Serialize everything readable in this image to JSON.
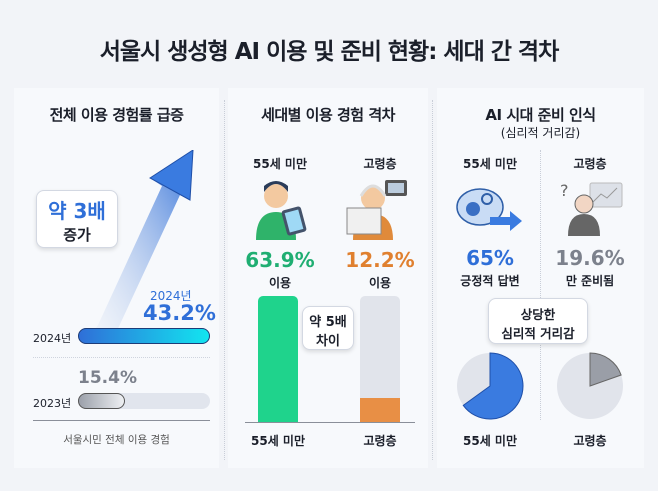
{
  "title": "서울시 생성형 AI 이용 및 준비 현황: 세대 간 격차",
  "colors": {
    "blue": "#2f6fd8",
    "green": "#1fc98a",
    "orange": "#e58a3a",
    "gray": "#8b909b"
  },
  "chart_data": [
    {
      "type": "bar",
      "title": "전체 이용 경험률 급증",
      "orientation": "horizontal",
      "categories": [
        "2024년",
        "2023년"
      ],
      "values": [
        43.2,
        15.4
      ],
      "unit": "%",
      "xlabel": "서울시민 전체 이용 경험",
      "annotation": {
        "line1": "약 3배",
        "line2": "증가"
      },
      "value_labels": {
        "2024": {
          "year": "2024년",
          "value": "43.2%"
        },
        "2023": {
          "value": "15.4%"
        }
      }
    },
    {
      "type": "bar",
      "title": "세대별 이용 경험 격차",
      "categories": [
        "55세 미만",
        "고령층"
      ],
      "values": [
        63.9,
        12.2
      ],
      "unit": "%",
      "headers": [
        "55세 미만",
        "고령층"
      ],
      "value_labels": [
        "63.9%",
        "12.2%"
      ],
      "sublabel": "이용",
      "annotation": {
        "line1": "약 5배",
        "line2": "차이"
      }
    },
    {
      "type": "pie",
      "title": "AI 시대 준비 인식",
      "subtitle": "(심리적 거리감)",
      "categories": [
        "55세 미만",
        "고령층"
      ],
      "headers": [
        "55세 미만",
        "고령층"
      ],
      "values": [
        65,
        19.6
      ],
      "unit": "%",
      "value_labels": [
        "65%",
        "19.6%"
      ],
      "sublabels": [
        "긍정적 답변",
        "만 준비됨"
      ],
      "annotation": {
        "line1": "상당한",
        "line2": "심리적 거리감"
      }
    }
  ]
}
